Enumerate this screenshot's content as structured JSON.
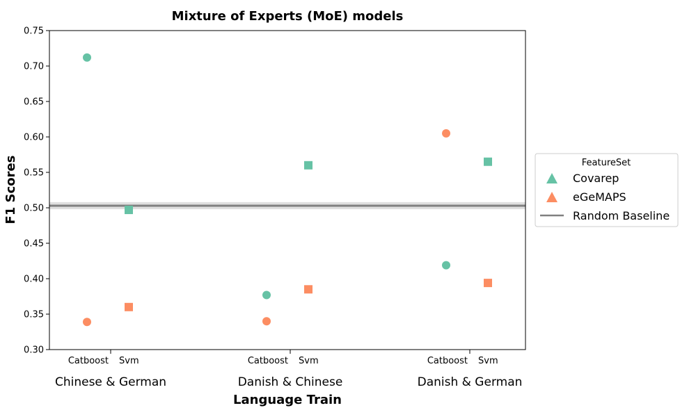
{
  "chart_data": {
    "type": "scatter",
    "title": "Mixture of Experts (MoE) models",
    "xlabel": "Language Train",
    "ylabel": "F1 Scores",
    "ylim": [
      0.3,
      0.75
    ],
    "yticks": [
      "0.30",
      "0.35",
      "0.40",
      "0.45",
      "0.50",
      "0.55",
      "0.60",
      "0.65",
      "0.70",
      "0.75"
    ],
    "groups": [
      "Chinese & German",
      "Danish & Chinese",
      "Danish & German"
    ],
    "models": [
      "Catboost",
      "Svm"
    ],
    "series": [
      {
        "name": "Covarep",
        "color": "#66c2a5",
        "points": [
          {
            "group": "Chinese & German",
            "model": "Catboost",
            "value": 0.712
          },
          {
            "group": "Chinese & German",
            "model": "Svm",
            "value": 0.497
          },
          {
            "group": "Danish & Chinese",
            "model": "Catboost",
            "value": 0.377
          },
          {
            "group": "Danish & Chinese",
            "model": "Svm",
            "value": 0.56
          },
          {
            "group": "Danish & German",
            "model": "Catboost",
            "value": 0.419
          },
          {
            "group": "Danish & German",
            "model": "Svm",
            "value": 0.565
          }
        ]
      },
      {
        "name": "eGeMAPS",
        "color": "#fc8d62",
        "points": [
          {
            "group": "Chinese & German",
            "model": "Catboost",
            "value": 0.339
          },
          {
            "group": "Chinese & German",
            "model": "Svm",
            "value": 0.36
          },
          {
            "group": "Danish & Chinese",
            "model": "Catboost",
            "value": 0.34
          },
          {
            "group": "Danish & Chinese",
            "model": "Svm",
            "value": 0.385
          },
          {
            "group": "Danish & German",
            "model": "Catboost",
            "value": 0.605
          },
          {
            "group": "Danish & German",
            "model": "Svm",
            "value": 0.394
          }
        ]
      }
    ],
    "baseline": {
      "name": "Random Baseline",
      "value": 0.503,
      "band": [
        0.498,
        0.508
      ],
      "color": "#808080"
    },
    "legend": {
      "title": "FeatureSet",
      "placement": "right",
      "entries": [
        "Covarep",
        "eGeMAPS",
        "Random Baseline"
      ]
    },
    "marker_shapes": {
      "Catboost": "circle",
      "Svm": "square"
    },
    "grid": false
  }
}
